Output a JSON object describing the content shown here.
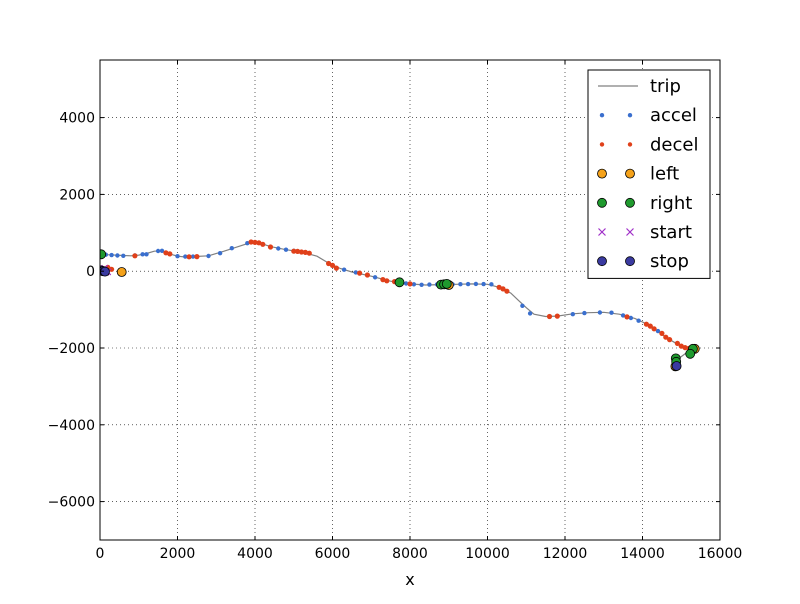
{
  "chart_data": {
    "type": "scatter",
    "title": "",
    "xlabel": "x",
    "ylabel": "",
    "xlim": [
      0,
      16000
    ],
    "ylim": [
      -7000,
      5500
    ],
    "xticks": [
      0,
      2000,
      4000,
      6000,
      8000,
      10000,
      12000,
      14000,
      16000
    ],
    "yticks": [
      -6000,
      -4000,
      -2000,
      0,
      2000,
      4000
    ],
    "xtick_labels": [
      "0",
      "2000",
      "4000",
      "6000",
      "8000",
      "10000",
      "12000",
      "14000",
      "16000"
    ],
    "ytick_labels": [
      "−6000",
      "−4000",
      "−2000",
      "0",
      "2000",
      "4000"
    ],
    "grid": true,
    "legend_position": "top-right",
    "legend": [
      "trip",
      "accel",
      "decel",
      "left",
      "right",
      "start",
      "stop"
    ],
    "series": [
      {
        "name": "trip",
        "kind": "line",
        "color": "#808080",
        "points": [
          [
            0,
            450
          ],
          [
            200,
            430
          ],
          [
            400,
            420
          ],
          [
            600,
            410
          ],
          [
            800,
            400
          ],
          [
            1000,
            420
          ],
          [
            1200,
            460
          ],
          [
            1400,
            520
          ],
          [
            1600,
            530
          ],
          [
            1800,
            450
          ],
          [
            2000,
            390
          ],
          [
            2200,
            370
          ],
          [
            2400,
            380
          ],
          [
            2800,
            400
          ],
          [
            3200,
            520
          ],
          [
            3600,
            650
          ],
          [
            3900,
            750
          ],
          [
            4100,
            740
          ],
          [
            4400,
            640
          ],
          [
            4800,
            560
          ],
          [
            5200,
            500
          ],
          [
            5600,
            390
          ],
          [
            5900,
            210
          ],
          [
            6200,
            70
          ],
          [
            6500,
            -20
          ],
          [
            7000,
            -130
          ],
          [
            7500,
            -260
          ],
          [
            8000,
            -330
          ],
          [
            8400,
            -360
          ],
          [
            8800,
            -350
          ],
          [
            9200,
            -340
          ],
          [
            9600,
            -330
          ],
          [
            10000,
            -340
          ],
          [
            10300,
            -420
          ],
          [
            10600,
            -570
          ],
          [
            10800,
            -760
          ],
          [
            11000,
            -950
          ],
          [
            11200,
            -1120
          ],
          [
            11500,
            -1180
          ],
          [
            11800,
            -1170
          ],
          [
            12200,
            -1110
          ],
          [
            12600,
            -1080
          ],
          [
            13000,
            -1070
          ],
          [
            13400,
            -1120
          ],
          [
            13800,
            -1230
          ],
          [
            14200,
            -1420
          ],
          [
            14600,
            -1720
          ],
          [
            14900,
            -1900
          ],
          [
            15100,
            -2000
          ],
          [
            15300,
            -2040
          ],
          [
            15100,
            -2150
          ],
          [
            14900,
            -2300
          ],
          [
            14850,
            -2450
          ]
        ]
      },
      {
        "name": "accel",
        "kind": "point",
        "color": "#3a6fce",
        "points": [
          [
            150,
            430
          ],
          [
            300,
            420
          ],
          [
            450,
            410
          ],
          [
            600,
            400
          ],
          [
            900,
            410
          ],
          [
            1100,
            440
          ],
          [
            1500,
            525
          ],
          [
            1600,
            530
          ],
          [
            2000,
            390
          ],
          [
            2200,
            380
          ],
          [
            2400,
            380
          ],
          [
            2800,
            395
          ],
          [
            3100,
            470
          ],
          [
            3400,
            600
          ],
          [
            3800,
            730
          ],
          [
            4600,
            590
          ],
          [
            4800,
            560
          ],
          [
            5000,
            530
          ],
          [
            6300,
            40
          ],
          [
            6600,
            -30
          ],
          [
            7100,
            -160
          ],
          [
            7900,
            -320
          ],
          [
            8100,
            -340
          ],
          [
            8300,
            -355
          ],
          [
            8500,
            -350
          ],
          [
            8700,
            -345
          ],
          [
            9100,
            -340
          ],
          [
            9300,
            -338
          ],
          [
            9500,
            -335
          ],
          [
            9700,
            -332
          ],
          [
            9900,
            -335
          ],
          [
            10100,
            -340
          ],
          [
            10900,
            -900
          ],
          [
            11100,
            -1100
          ],
          [
            12200,
            -1120
          ],
          [
            12500,
            -1090
          ],
          [
            12900,
            -1075
          ],
          [
            13200,
            -1080
          ],
          [
            13500,
            -1150
          ],
          [
            13700,
            -1220
          ],
          [
            13900,
            -1290
          ],
          [
            14400,
            -1560
          ],
          [
            1200,
            440
          ]
        ]
      },
      {
        "name": "decel",
        "kind": "point",
        "color": "#e0401a",
        "points": [
          [
            900,
            400
          ],
          [
            1700,
            480
          ],
          [
            1800,
            450
          ],
          [
            2300,
            375
          ],
          [
            2500,
            380
          ],
          [
            3900,
            760
          ],
          [
            4000,
            750
          ],
          [
            4100,
            740
          ],
          [
            4200,
            700
          ],
          [
            4400,
            630
          ],
          [
            5000,
            520
          ],
          [
            5100,
            515
          ],
          [
            5200,
            500
          ],
          [
            5300,
            490
          ],
          [
            5400,
            470
          ],
          [
            5900,
            200
          ],
          [
            6000,
            150
          ],
          [
            6100,
            80
          ],
          [
            6700,
            -50
          ],
          [
            6900,
            -100
          ],
          [
            7300,
            -220
          ],
          [
            7400,
            -250
          ],
          [
            7600,
            -270
          ],
          [
            7700,
            -280
          ],
          [
            8000,
            -330
          ],
          [
            10300,
            -420
          ],
          [
            10400,
            -460
          ],
          [
            10500,
            -520
          ],
          [
            11600,
            -1180
          ],
          [
            11800,
            -1170
          ],
          [
            13600,
            -1190
          ],
          [
            14100,
            -1380
          ],
          [
            14200,
            -1430
          ],
          [
            14300,
            -1500
          ],
          [
            14500,
            -1620
          ],
          [
            14600,
            -1720
          ],
          [
            14700,
            -1780
          ],
          [
            14900,
            -1880
          ],
          [
            15000,
            -1950
          ],
          [
            15100,
            -1990
          ],
          [
            15200,
            -2010
          ],
          [
            200,
            100
          ],
          [
            300,
            50
          ]
        ]
      },
      {
        "name": "left",
        "kind": "point",
        "color": "#f5a21a",
        "points": [
          [
            560,
            -20
          ],
          [
            9000,
            -360
          ],
          [
            15350,
            -2020
          ],
          [
            14850,
            -2480
          ]
        ]
      },
      {
        "name": "right",
        "kind": "point",
        "color": "#1f9a2e",
        "points": [
          [
            30,
            440
          ],
          [
            7730,
            -290
          ],
          [
            8800,
            -350
          ],
          [
            8880,
            -340
          ],
          [
            8950,
            -330
          ],
          [
            15300,
            -2020
          ],
          [
            15230,
            -2150
          ],
          [
            14860,
            -2270
          ],
          [
            14870,
            -2360
          ]
        ]
      },
      {
        "name": "start",
        "kind": "x",
        "color": "#a030c8",
        "points": [
          [
            60,
            50
          ],
          [
            100,
            0
          ],
          [
            150,
            -30
          ],
          [
            200,
            -20
          ],
          [
            120,
            80
          ]
        ]
      },
      {
        "name": "stop",
        "kind": "point",
        "color": "#3a3aa0",
        "points": [
          [
            30,
            20
          ],
          [
            80,
            0
          ],
          [
            130,
            -10
          ],
          [
            14880,
            -2470
          ]
        ]
      }
    ]
  }
}
